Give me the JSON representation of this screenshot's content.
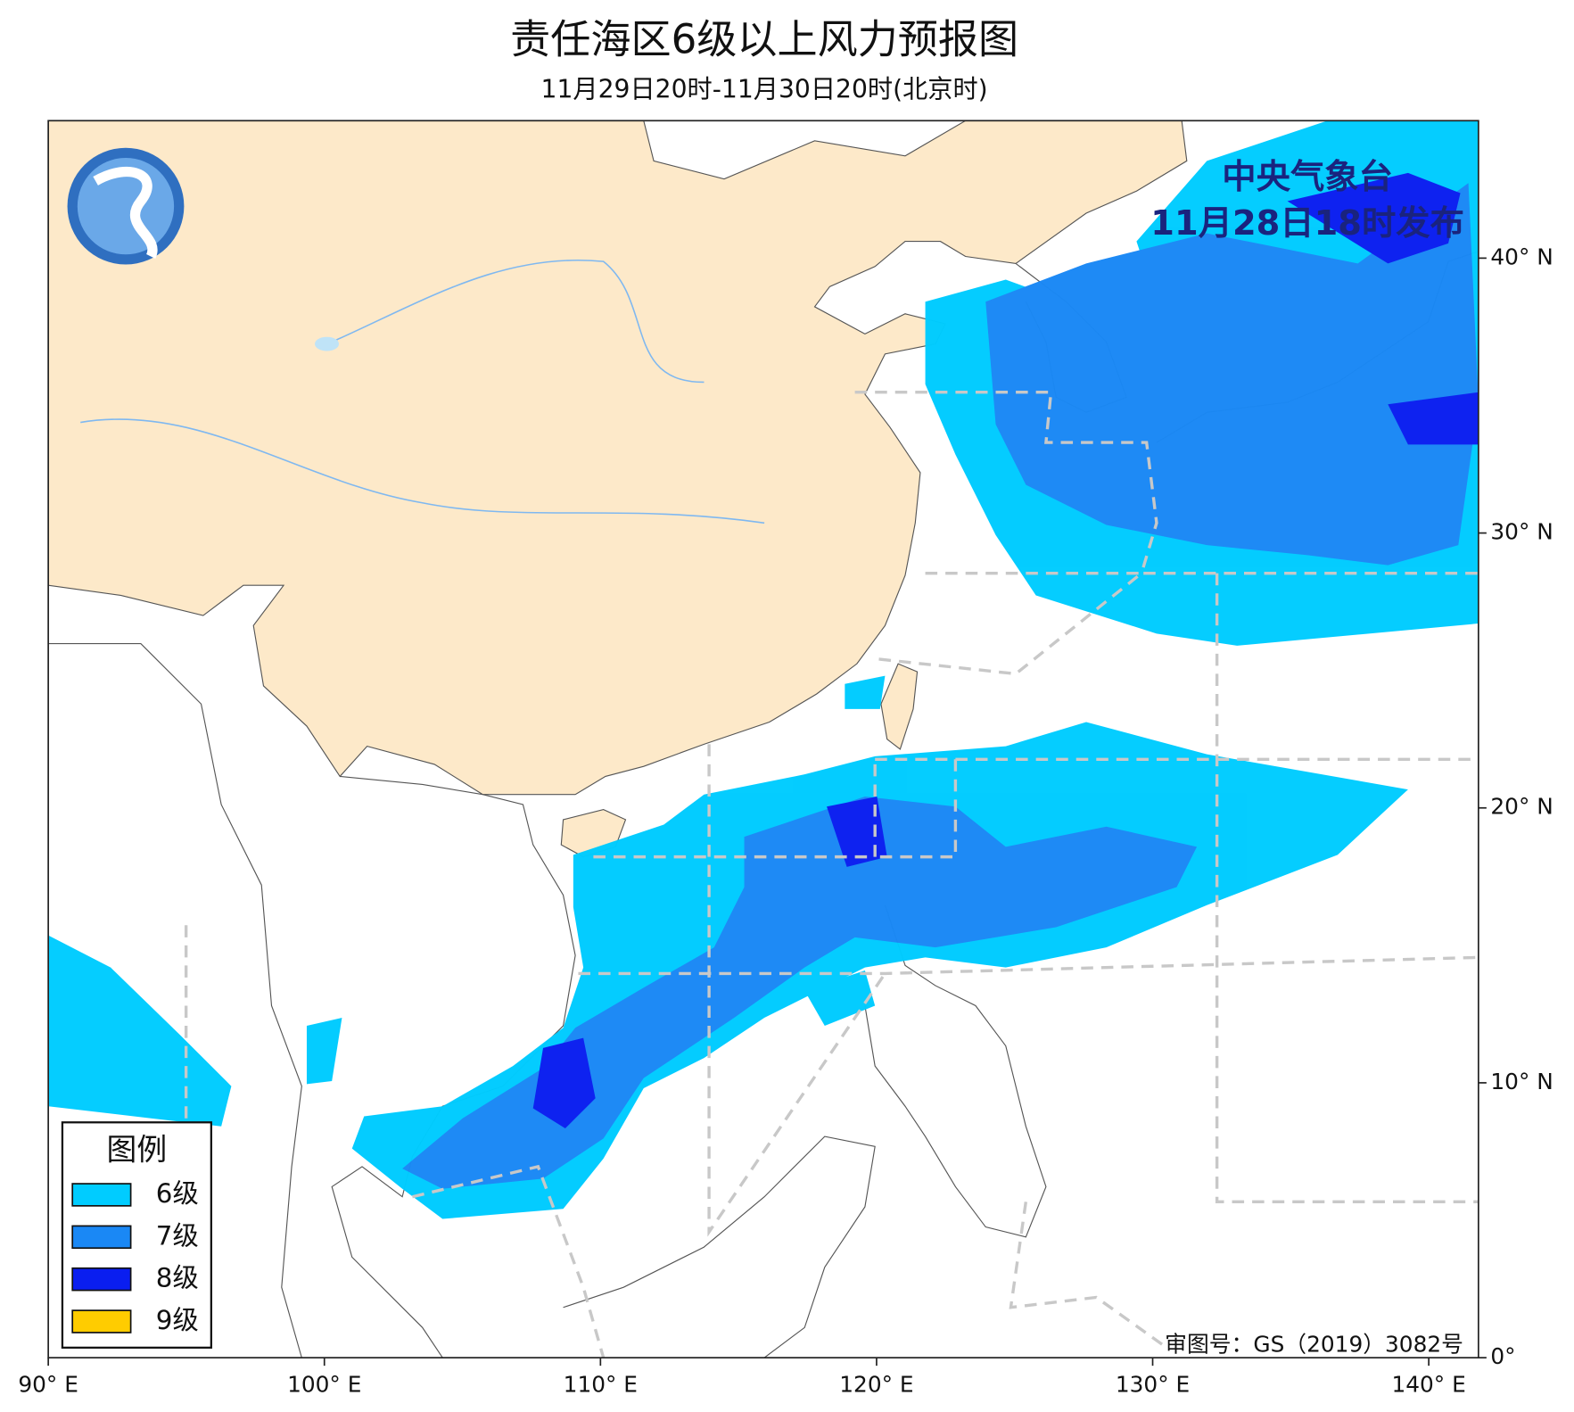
{
  "header": {
    "title": "责任海区6级以上风力预报图",
    "subtitle": "11月29日20时-11月30日20时(北京时)"
  },
  "issuer": {
    "name": "中央气象台",
    "time": "11月28日18时发布"
  },
  "legend": {
    "title": "图例",
    "items": [
      {
        "label": "6级",
        "color": "#00ccff"
      },
      {
        "label": "7级",
        "color": "#1a88f5"
      },
      {
        "label": "8级",
        "color": "#0a1ef0"
      },
      {
        "label": "9级",
        "color": "#ffcc00"
      }
    ]
  },
  "map": {
    "xlim": [
      90,
      141.8
    ],
    "ylim": [
      0,
      45
    ],
    "xticks": [
      {
        "value": 90,
        "label": "90° E"
      },
      {
        "value": 100,
        "label": "100° E"
      },
      {
        "value": 110,
        "label": "110° E"
      },
      {
        "value": 120,
        "label": "120° E"
      },
      {
        "value": 130,
        "label": "130° E"
      },
      {
        "value": 140,
        "label": "140° E"
      }
    ],
    "yticks": [
      {
        "value": 0,
        "label": "0°"
      },
      {
        "value": 10,
        "label": "10° N"
      },
      {
        "value": 20,
        "label": "20° N"
      },
      {
        "value": 30,
        "label": "30° N"
      },
      {
        "value": 40,
        "label": "40° N"
      }
    ]
  },
  "approval": "审图号：GS（2019）3082号"
}
